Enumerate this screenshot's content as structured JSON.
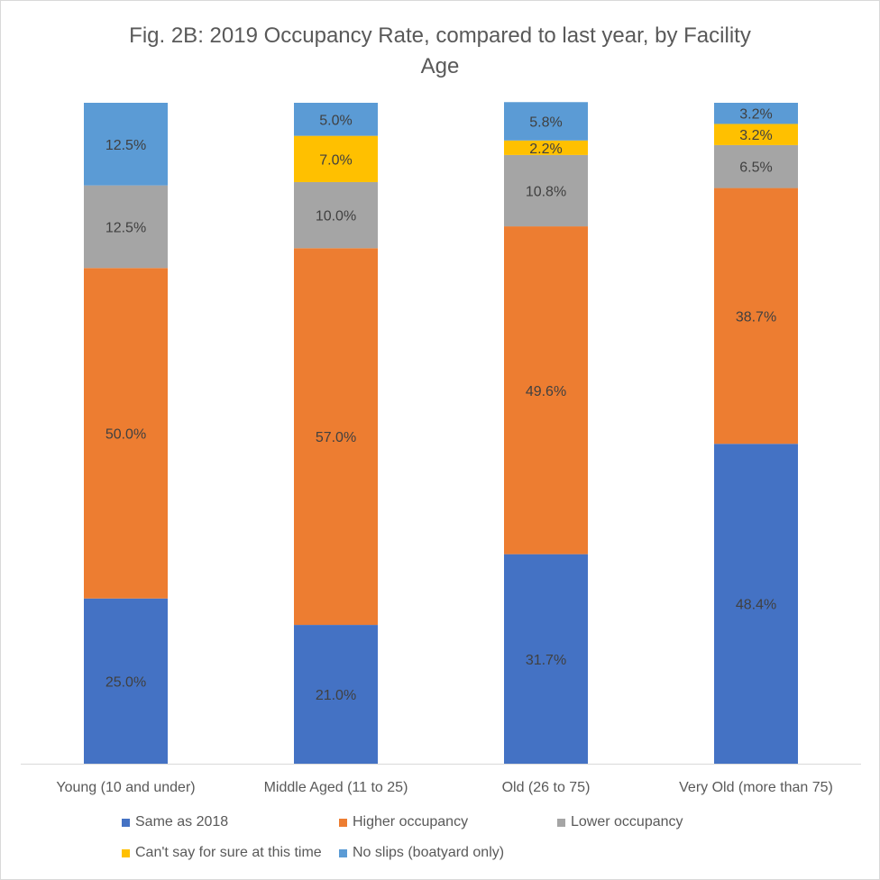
{
  "chart_data": {
    "type": "bar",
    "stacked": true,
    "title": "Fig. 2B: 2019 Occupancy Rate, compared to last year, by Facility Age",
    "title_lines": [
      "Fig. 2B: 2019 Occupancy Rate, compared to last year, by Facility",
      "Age"
    ],
    "categories": [
      "Young (10 and under)",
      "Middle Aged (11 to 25)",
      "Old (26 to 75)",
      "Very Old (more than 75)"
    ],
    "series": [
      {
        "name": "Same as 2018",
        "color": "#4472c4",
        "values": [
          25.0,
          21.0,
          31.7,
          48.4
        ],
        "labels": [
          "25.0%",
          "21.0%",
          "31.7%",
          "48.4%"
        ]
      },
      {
        "name": "Higher occupancy",
        "color": "#ed7d31",
        "values": [
          50.0,
          57.0,
          49.6,
          38.7
        ],
        "labels": [
          "50.0%",
          "57.0%",
          "49.6%",
          "38.7%"
        ]
      },
      {
        "name": "Lower occupancy",
        "color": "#a5a5a5",
        "values": [
          12.5,
          10.0,
          10.8,
          6.5
        ],
        "labels": [
          "12.5%",
          "10.0%",
          "10.8%",
          "6.5%"
        ]
      },
      {
        "name": "Can't say for sure at this time",
        "color": "#ffc000",
        "values": [
          0,
          7.0,
          2.2,
          3.2
        ],
        "labels": [
          "",
          "7.0%",
          "2.2%",
          "3.2%"
        ]
      },
      {
        "name": "No slips (boatyard only)",
        "color": "#5b9bd5",
        "values": [
          12.5,
          5.0,
          5.8,
          3.2
        ],
        "labels": [
          "12.5%",
          "5.0%",
          "5.8%",
          "3.2%"
        ]
      }
    ],
    "ylim": [
      0,
      100
    ],
    "grid": false,
    "legend": "bottom",
    "text_color": "#595959",
    "axis_color": "#d9d9d9"
  }
}
